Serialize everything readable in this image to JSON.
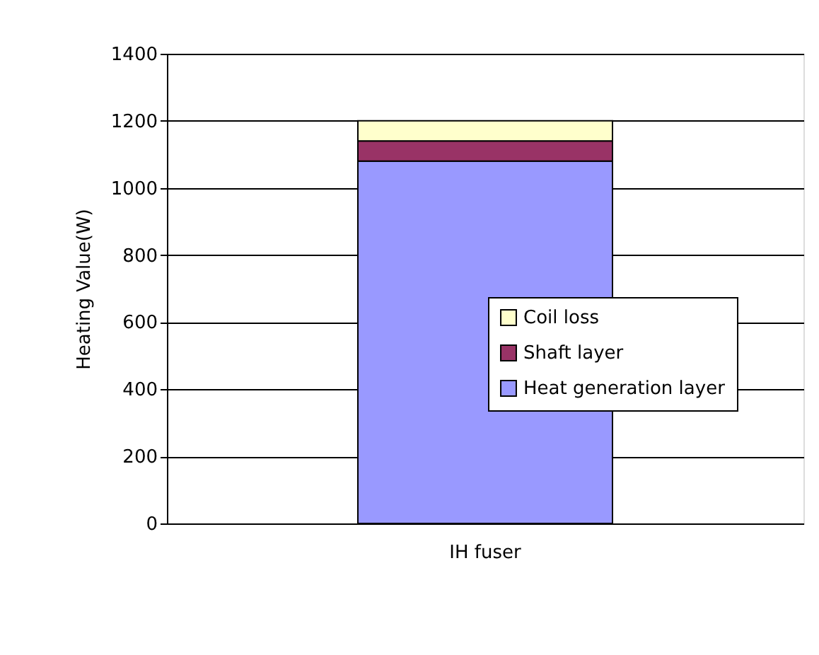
{
  "chart_data": {
    "type": "bar",
    "stacked": true,
    "ylabel": "Heating Value(W)",
    "categories": [
      "IH fuser"
    ],
    "series": [
      {
        "name": "Heat generation layer",
        "color": "#9999ff",
        "values": [
          1080
        ]
      },
      {
        "name": "Shaft layer",
        "color": "#993366",
        "values": [
          60
        ]
      },
      {
        "name": "Coil loss",
        "color": "#ffffcc",
        "values": [
          60
        ]
      }
    ],
    "ylim": [
      0,
      1400
    ],
    "yticks": [
      0,
      200,
      400,
      600,
      800,
      1000,
      1200,
      1400
    ],
    "grid": "y",
    "legend": "right"
  }
}
